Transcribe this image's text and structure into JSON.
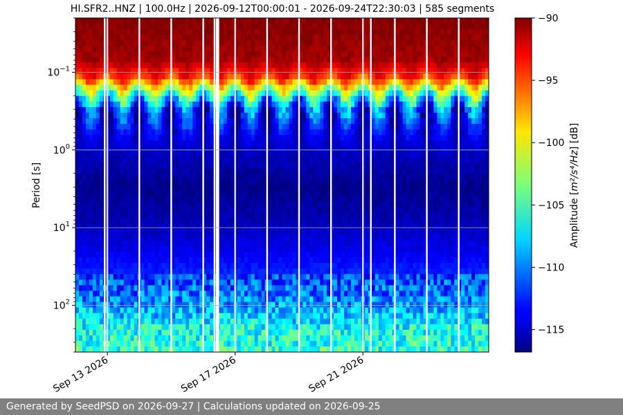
{
  "footer": {
    "text": "Generated by SeedPSD on 2026-09-27 | Calculations updated on 2026-09-25"
  },
  "chart_data": {
    "type": "heatmap",
    "title": "HI.SFR2..HNZ | 100.0Hz | 2026-09-12T00:00:01 - 2026-09-24T22:30:03 | 585 segments",
    "ylabel": "Period [s]",
    "yscale": "log",
    "yaxis_inverted": true,
    "ylim": [
      0.02,
      400
    ],
    "y_ticks": [
      {
        "value": 0.1,
        "base": "10",
        "exp": "−1"
      },
      {
        "value": 1,
        "base": "10",
        "exp": "0"
      },
      {
        "value": 10,
        "base": "10",
        "exp": "1"
      },
      {
        "value": 100,
        "base": "10",
        "exp": "2"
      }
    ],
    "xlim": [
      "2026-09-12T00:00:01",
      "2026-09-24T22:30:03"
    ],
    "x_ticks": [
      {
        "date": "2026-09-13",
        "label": "Sep 13 2026"
      },
      {
        "date": "2026-09-17",
        "label": "Sep 17 2026"
      },
      {
        "date": "2026-09-21",
        "label": "Sep 21 2026"
      }
    ],
    "grid": true,
    "colormap": "jet",
    "colorbar": {
      "label_prefix": "Amplitude [",
      "label_units": "m²/s⁴/Hz",
      "label_suffix": "] [dB]",
      "range": [
        -116.8,
        -90
      ],
      "ticks": [
        {
          "value": -90,
          "label": "−90"
        },
        {
          "value": -95,
          "label": "−95"
        },
        {
          "value": -100,
          "label": "−100"
        },
        {
          "value": -105,
          "label": "−105"
        },
        {
          "value": -110,
          "label": "−110"
        },
        {
          "value": -115,
          "label": "−115"
        }
      ]
    },
    "data_gaps": [
      "2026-09-12T22:00:00",
      "2026-09-13T00:00:00",
      "2026-09-14T00:00:00",
      "2026-09-15T00:00:00",
      "2026-09-16T00:00:00",
      "2026-09-16T08:30:00",
      "2026-09-17T00:00:00",
      "2026-09-18T00:00:00",
      "2026-09-19T00:00:00",
      "2026-09-20T00:00:00",
      "2026-09-21T00:00:00",
      "2026-09-21T06:00:00",
      "2026-09-22T00:00:00",
      "2026-09-23T00:00:00",
      "2026-09-24T00:00:00"
    ],
    "wide_gaps": [
      {
        "start": "2026-09-16T09:30:00",
        "end": "2026-09-16T12:00:00"
      }
    ],
    "amplitude_profile": [
      {
        "period": 0.02,
        "db": -90
      },
      {
        "period": 0.07,
        "db": -91
      },
      {
        "period": 0.12,
        "db": -95
      },
      {
        "period": 0.2,
        "db": -106
      },
      {
        "period": 0.3,
        "db": -112
      },
      {
        "period": 0.6,
        "db": -114
      },
      {
        "period": 1,
        "db": -115
      },
      {
        "period": 3,
        "db": -116.5
      },
      {
        "period": 8,
        "db": -115.5
      },
      {
        "period": 20,
        "db": -114
      },
      {
        "period": 50,
        "db": -112
      },
      {
        "period": 100,
        "db": -110
      },
      {
        "period": 200,
        "db": -107
      },
      {
        "period": 400,
        "db": -106
      }
    ]
  }
}
